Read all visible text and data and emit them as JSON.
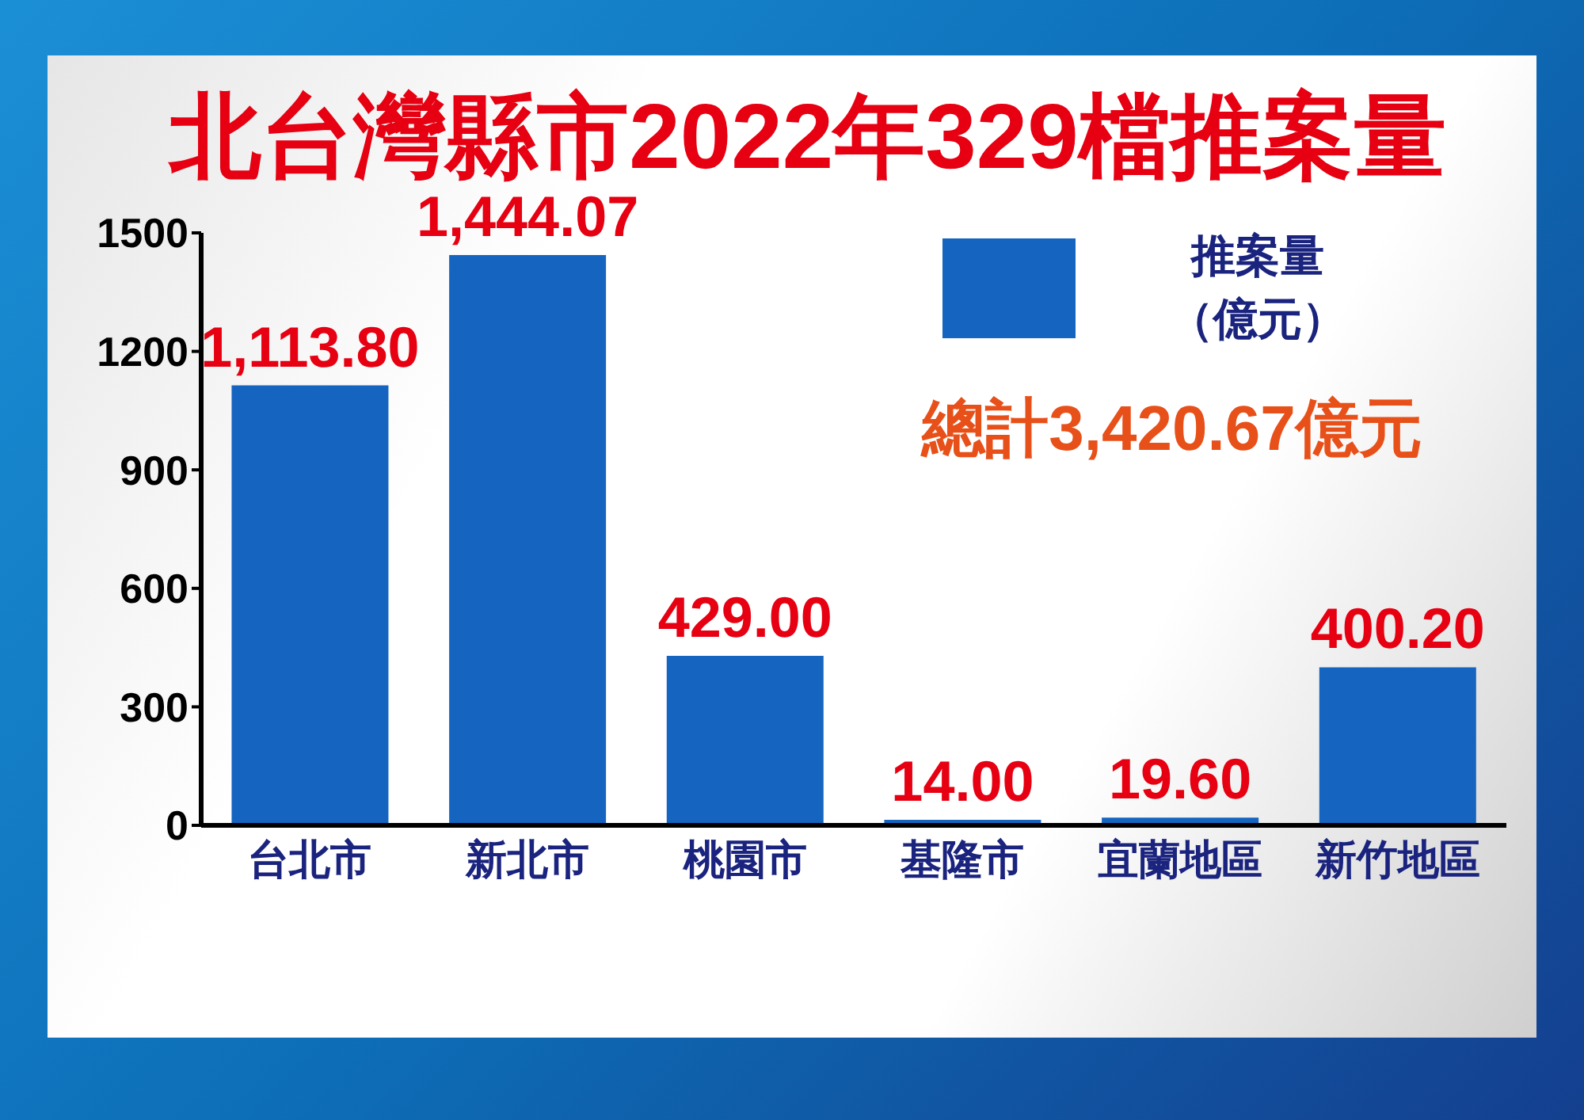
{
  "chart_data": {
    "type": "bar",
    "title": "北台灣縣市2022年329檔推案量",
    "categories": [
      "台北市",
      "新北市",
      "桃園市",
      "基隆市",
      "宜蘭地區",
      "新竹地區"
    ],
    "series": [
      {
        "name": "推案量（億元）",
        "color": "#1565c0",
        "values": [
          1113.8,
          1444.07,
          429,
          14,
          19.6,
          400.2
        ],
        "value_labels": [
          "1,113.80",
          "1,444.07",
          "429.00",
          "14.00",
          "19.60",
          "400.20"
        ]
      }
    ],
    "ylim": [
      0,
      1500
    ],
    "yticks": [
      0,
      300,
      600,
      900,
      1200,
      1500
    ],
    "grid": false,
    "legend": "top right",
    "annotations": [
      "總計3,420.67億元"
    ]
  }
}
